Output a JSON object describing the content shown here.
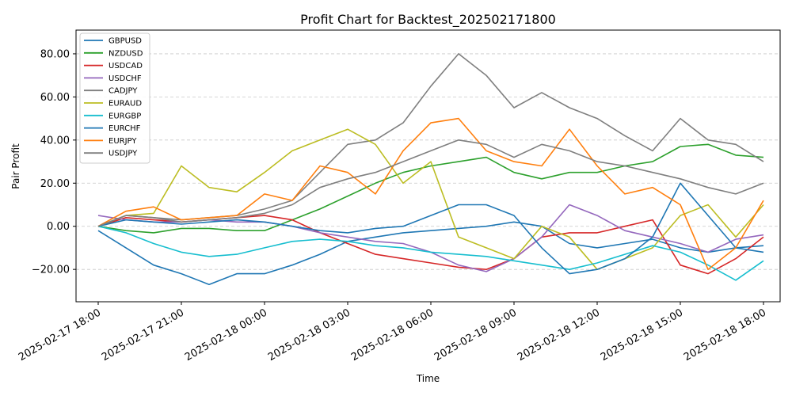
{
  "chart_data": {
    "type": "line",
    "title": "Profit Chart for Backtest_202502171800",
    "xlabel": "Time",
    "ylabel": "Pair Profit",
    "x_start": "2025-02-17 18:00",
    "x_end": "2025-02-18 18:00",
    "xlim": [
      "2025-02-17 17:12",
      "2025-02-18 18:36"
    ],
    "ylim": [
      -35,
      91
    ],
    "grid": "horizontal dashed",
    "legend_position": "top-left",
    "x_ticks": [
      "2025-02-17 18:00",
      "2025-02-17 21:00",
      "2025-02-18 00:00",
      "2025-02-18 03:00",
      "2025-02-18 06:00",
      "2025-02-18 09:00",
      "2025-02-18 12:00",
      "2025-02-18 15:00",
      "2025-02-18 18:00"
    ],
    "y_ticks": [
      -20,
      0,
      20,
      40,
      60,
      80
    ],
    "y_tick_labels": [
      "−20.00",
      "0.00",
      "20.00",
      "40.00",
      "60.00",
      "80.00"
    ],
    "series": [
      {
        "name": "GBPUSD",
        "color": "#1f77b4",
        "x": [
          "2025-02-17 18:00",
          "2025-02-17 19:00",
          "2025-02-17 20:00",
          "2025-02-17 21:00",
          "2025-02-17 22:00",
          "2025-02-17 23:00",
          "2025-02-18 00:00",
          "2025-02-18 01:00",
          "2025-02-18 02:00",
          "2025-02-18 03:00",
          "2025-02-18 04:00",
          "2025-02-18 05:00",
          "2025-02-18 06:00",
          "2025-02-18 07:00",
          "2025-02-18 08:00",
          "2025-02-18 09:00",
          "2025-02-18 10:00",
          "2025-02-18 11:00",
          "2025-02-18 12:00",
          "2025-02-18 13:00",
          "2025-02-18 14:00",
          "2025-02-18 15:00",
          "2025-02-18 16:00",
          "2025-02-18 17:00",
          "2025-02-18 18:00"
        ],
        "y": [
          -2,
          -10,
          -18,
          -22,
          -27,
          -22,
          -22,
          -18,
          -13,
          -7,
          -5,
          -3,
          -2,
          -1,
          0,
          2,
          0,
          -8,
          -10,
          -8,
          -6,
          -10,
          -12,
          -10,
          -9
        ]
      },
      {
        "name": "NZDUSD",
        "color": "#2ca02c",
        "x": [
          "2025-02-17 18:00",
          "2025-02-17 19:00",
          "2025-02-17 20:00",
          "2025-02-17 21:00",
          "2025-02-17 22:00",
          "2025-02-17 23:00",
          "2025-02-18 00:00",
          "2025-02-18 01:00",
          "2025-02-18 02:00",
          "2025-02-18 03:00",
          "2025-02-18 04:00",
          "2025-02-18 05:00",
          "2025-02-18 06:00",
          "2025-02-18 07:00",
          "2025-02-18 08:00",
          "2025-02-18 09:00",
          "2025-02-18 10:00",
          "2025-02-18 11:00",
          "2025-02-18 12:00",
          "2025-02-18 13:00",
          "2025-02-18 14:00",
          "2025-02-18 15:00",
          "2025-02-18 16:00",
          "2025-02-18 17:00",
          "2025-02-18 18:00"
        ],
        "y": [
          0,
          -2,
          -3,
          -1,
          -1,
          -2,
          -2,
          3,
          8,
          14,
          20,
          25,
          28,
          30,
          32,
          25,
          22,
          25,
          25,
          28,
          30,
          37,
          38,
          33,
          32
        ]
      },
      {
        "name": "USDCAD",
        "color": "#d62728",
        "x": [
          "2025-02-17 18:00",
          "2025-02-17 19:00",
          "2025-02-17 20:00",
          "2025-02-17 21:00",
          "2025-02-17 22:00",
          "2025-02-17 23:00",
          "2025-02-18 00:00",
          "2025-02-18 01:00",
          "2025-02-18 02:00",
          "2025-02-18 03:00",
          "2025-02-18 04:00",
          "2025-02-18 05:00",
          "2025-02-18 06:00",
          "2025-02-18 07:00",
          "2025-02-18 08:00",
          "2025-02-18 09:00",
          "2025-02-18 10:00",
          "2025-02-18 11:00",
          "2025-02-18 12:00",
          "2025-02-18 13:00",
          "2025-02-18 14:00",
          "2025-02-18 15:00",
          "2025-02-18 16:00",
          "2025-02-18 17:00",
          "2025-02-18 18:00"
        ],
        "y": [
          0,
          4,
          3,
          2,
          3,
          4,
          5,
          3,
          -3,
          -8,
          -13,
          -15,
          -17,
          -19,
          -20,
          -15,
          -5,
          -3,
          -3,
          0,
          3,
          -18,
          -22,
          -15,
          -5
        ]
      },
      {
        "name": "USDCHF",
        "color": "#9467bd",
        "x": [
          "2025-02-17 18:00",
          "2025-02-17 19:00",
          "2025-02-17 20:00",
          "2025-02-17 21:00",
          "2025-02-17 22:00",
          "2025-02-17 23:00",
          "2025-02-18 00:00",
          "2025-02-18 01:00",
          "2025-02-18 02:00",
          "2025-02-18 03:00",
          "2025-02-18 04:00",
          "2025-02-18 05:00",
          "2025-02-18 06:00",
          "2025-02-18 07:00",
          "2025-02-18 08:00",
          "2025-02-18 09:00",
          "2025-02-18 10:00",
          "2025-02-18 11:00",
          "2025-02-18 12:00",
          "2025-02-18 13:00",
          "2025-02-18 14:00",
          "2025-02-18 15:00",
          "2025-02-18 16:00",
          "2025-02-18 17:00",
          "2025-02-18 18:00"
        ],
        "y": [
          5,
          3,
          2,
          2,
          3,
          2,
          2,
          0,
          -3,
          -5,
          -7,
          -8,
          -12,
          -18,
          -21,
          -15,
          -5,
          10,
          5,
          -2,
          -5,
          -8,
          -12,
          -6,
          -4
        ]
      },
      {
        "name": "CADJPY",
        "color": "#7f7f7f",
        "x": [
          "2025-02-17 18:00",
          "2025-02-17 19:00",
          "2025-02-17 20:00",
          "2025-02-17 21:00",
          "2025-02-17 22:00",
          "2025-02-17 23:00",
          "2025-02-18 00:00",
          "2025-02-18 01:00",
          "2025-02-18 02:00",
          "2025-02-18 03:00",
          "2025-02-18 04:00",
          "2025-02-18 05:00",
          "2025-02-18 06:00",
          "2025-02-18 07:00",
          "2025-02-18 08:00",
          "2025-02-18 09:00",
          "2025-02-18 10:00",
          "2025-02-18 11:00",
          "2025-02-18 12:00",
          "2025-02-18 13:00",
          "2025-02-18 14:00",
          "2025-02-18 15:00",
          "2025-02-18 16:00",
          "2025-02-18 17:00",
          "2025-02-18 18:00"
        ],
        "y": [
          0,
          5,
          4,
          3,
          4,
          5,
          8,
          12,
          25,
          38,
          40,
          48,
          65,
          80,
          70,
          55,
          62,
          55,
          50,
          42,
          35,
          50,
          40,
          38,
          30
        ]
      },
      {
        "name": "EURAUD",
        "color": "#bcbd22",
        "x": [
          "2025-02-17 18:00",
          "2025-02-17 19:00",
          "2025-02-17 20:00",
          "2025-02-17 21:00",
          "2025-02-17 22:00",
          "2025-02-17 23:00",
          "2025-02-18 00:00",
          "2025-02-18 01:00",
          "2025-02-18 02:00",
          "2025-02-18 03:00",
          "2025-02-18 04:00",
          "2025-02-18 05:00",
          "2025-02-18 06:00",
          "2025-02-18 07:00",
          "2025-02-18 08:00",
          "2025-02-18 09:00",
          "2025-02-18 10:00",
          "2025-02-18 11:00",
          "2025-02-18 12:00",
          "2025-02-18 13:00",
          "2025-02-18 14:00",
          "2025-02-18 15:00",
          "2025-02-18 16:00",
          "2025-02-18 17:00",
          "2025-02-18 18:00"
        ],
        "y": [
          0,
          5,
          6,
          28,
          18,
          16,
          25,
          35,
          40,
          45,
          38,
          20,
          30,
          -5,
          -10,
          -15,
          0,
          -5,
          -20,
          -15,
          -10,
          5,
          10,
          -5,
          10
        ]
      },
      {
        "name": "EURGBP",
        "color": "#17becf",
        "x": [
          "2025-02-17 18:00",
          "2025-02-17 19:00",
          "2025-02-17 20:00",
          "2025-02-17 21:00",
          "2025-02-17 22:00",
          "2025-02-17 23:00",
          "2025-02-18 00:00",
          "2025-02-18 01:00",
          "2025-02-18 02:00",
          "2025-02-18 03:00",
          "2025-02-18 04:00",
          "2025-02-18 05:00",
          "2025-02-18 06:00",
          "2025-02-18 07:00",
          "2025-02-18 08:00",
          "2025-02-18 09:00",
          "2025-02-18 10:00",
          "2025-02-18 11:00",
          "2025-02-18 12:00",
          "2025-02-18 13:00",
          "2025-02-18 14:00",
          "2025-02-18 15:00",
          "2025-02-18 16:00",
          "2025-02-18 17:00",
          "2025-02-18 18:00"
        ],
        "y": [
          0,
          -3,
          -8,
          -12,
          -14,
          -13,
          -10,
          -7,
          -6,
          -7,
          -9,
          -10,
          -12,
          -13,
          -14,
          -16,
          -18,
          -20,
          -17,
          -13,
          -9,
          -12,
          -18,
          -25,
          -16
        ]
      },
      {
        "name": "EURCHF",
        "color": "#1f77b4",
        "x": [
          "2025-02-17 18:00",
          "2025-02-17 19:00",
          "2025-02-17 20:00",
          "2025-02-17 21:00",
          "2025-02-17 22:00",
          "2025-02-17 23:00",
          "2025-02-18 00:00",
          "2025-02-18 01:00",
          "2025-02-18 02:00",
          "2025-02-18 03:00",
          "2025-02-18 04:00",
          "2025-02-18 05:00",
          "2025-02-18 06:00",
          "2025-02-18 07:00",
          "2025-02-18 08:00",
          "2025-02-18 09:00",
          "2025-02-18 10:00",
          "2025-02-18 11:00",
          "2025-02-18 12:00",
          "2025-02-18 13:00",
          "2025-02-18 14:00",
          "2025-02-18 15:00",
          "2025-02-18 16:00",
          "2025-02-18 17:00",
          "2025-02-18 18:00"
        ],
        "y": [
          0,
          3,
          2,
          1,
          2,
          3,
          2,
          0,
          -2,
          -3,
          -1,
          0,
          5,
          10,
          10,
          5,
          -10,
          -22,
          -20,
          -15,
          -5,
          20,
          5,
          -10,
          -12
        ]
      },
      {
        "name": "EURJPY",
        "color": "#ff7f0e",
        "x": [
          "2025-02-17 18:00",
          "2025-02-17 19:00",
          "2025-02-17 20:00",
          "2025-02-17 21:00",
          "2025-02-17 22:00",
          "2025-02-17 23:00",
          "2025-02-18 00:00",
          "2025-02-18 01:00",
          "2025-02-18 02:00",
          "2025-02-18 03:00",
          "2025-02-18 04:00",
          "2025-02-18 05:00",
          "2025-02-18 06:00",
          "2025-02-18 07:00",
          "2025-02-18 08:00",
          "2025-02-18 09:00",
          "2025-02-18 10:00",
          "2025-02-18 11:00",
          "2025-02-18 12:00",
          "2025-02-18 13:00",
          "2025-02-18 14:00",
          "2025-02-18 15:00",
          "2025-02-18 16:00",
          "2025-02-18 17:00",
          "2025-02-18 18:00"
        ],
        "y": [
          0,
          7,
          9,
          3,
          4,
          5,
          15,
          12,
          28,
          25,
          15,
          35,
          48,
          50,
          35,
          30,
          28,
          45,
          28,
          15,
          18,
          10,
          -20,
          -10,
          12
        ]
      },
      {
        "name": "USDJPY",
        "color": "#7f7f7f",
        "x": [
          "2025-02-17 18:00",
          "2025-02-17 19:00",
          "2025-02-17 20:00",
          "2025-02-17 21:00",
          "2025-02-17 22:00",
          "2025-02-17 23:00",
          "2025-02-18 00:00",
          "2025-02-18 01:00",
          "2025-02-18 02:00",
          "2025-02-18 03:00",
          "2025-02-18 04:00",
          "2025-02-18 05:00",
          "2025-02-18 06:00",
          "2025-02-18 07:00",
          "2025-02-18 08:00",
          "2025-02-18 09:00",
          "2025-02-18 10:00",
          "2025-02-18 11:00",
          "2025-02-18 12:00",
          "2025-02-18 13:00",
          "2025-02-18 14:00",
          "2025-02-18 15:00",
          "2025-02-18 16:00",
          "2025-02-18 17:00",
          "2025-02-18 18:00"
        ],
        "y": [
          0,
          5,
          4,
          2,
          3,
          4,
          6,
          10,
          18,
          22,
          25,
          30,
          35,
          40,
          38,
          32,
          38,
          35,
          30,
          28,
          25,
          22,
          18,
          15,
          20
        ]
      }
    ]
  }
}
